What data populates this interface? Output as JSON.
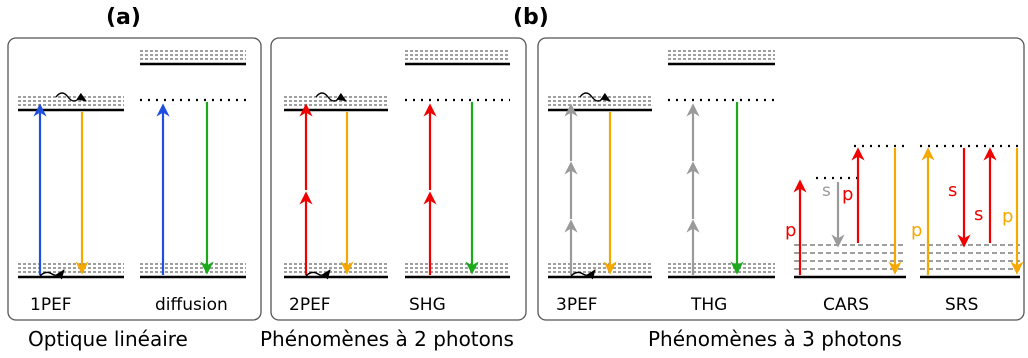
{
  "panel_labels": {
    "a": "(a)",
    "b": "(b)"
  },
  "groups": {
    "linear": {
      "caption": "Optique linéaire"
    },
    "two_photon": {
      "caption": "Phénomènes à 2 photons"
    },
    "three_photon": {
      "caption": "Phénomènes à 3 photons"
    }
  },
  "processes": {
    "p1PEF": "1PEF",
    "diffusion": "diffusion",
    "p2PEF": "2PEF",
    "shg": "SHG",
    "p3PEF": "3PEF",
    "thg": "THG",
    "cars": "CARS",
    "srs": "SRS"
  },
  "beam_labels": {
    "pump": "p",
    "stokes": "s"
  },
  "colors": {
    "blue": "#1f4fe0",
    "orange": "#f5a800",
    "green": "#1aaa1a",
    "red": "#f00000",
    "gray": "#9a9a9a",
    "level": "#000000",
    "dashed": "#666666",
    "panel_border": "#555555"
  }
}
